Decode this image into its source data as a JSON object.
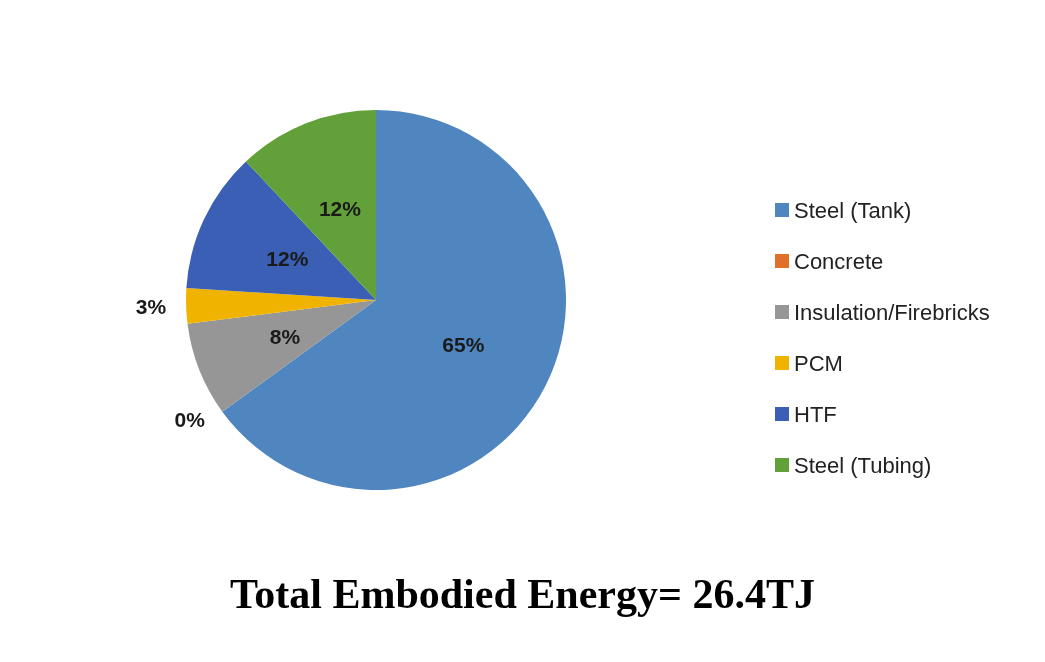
{
  "chart_data": {
    "type": "pie",
    "title": "Total Embodied Energy= 26.4TJ",
    "categories": [
      "Steel (Tank)",
      "Concrete",
      "Insulation/Firebricks",
      "PCM",
      "HTF",
      "Steel (Tubing)"
    ],
    "values": [
      65,
      0,
      8,
      3,
      12,
      12
    ],
    "colors": [
      "#4f86c0",
      "#e07028",
      "#969696",
      "#f0b400",
      "#3a5fb5",
      "#62a03a"
    ],
    "value_labels": [
      "65%",
      "0%",
      "8%",
      "3%",
      "12%",
      "12%"
    ],
    "legend": "right"
  }
}
